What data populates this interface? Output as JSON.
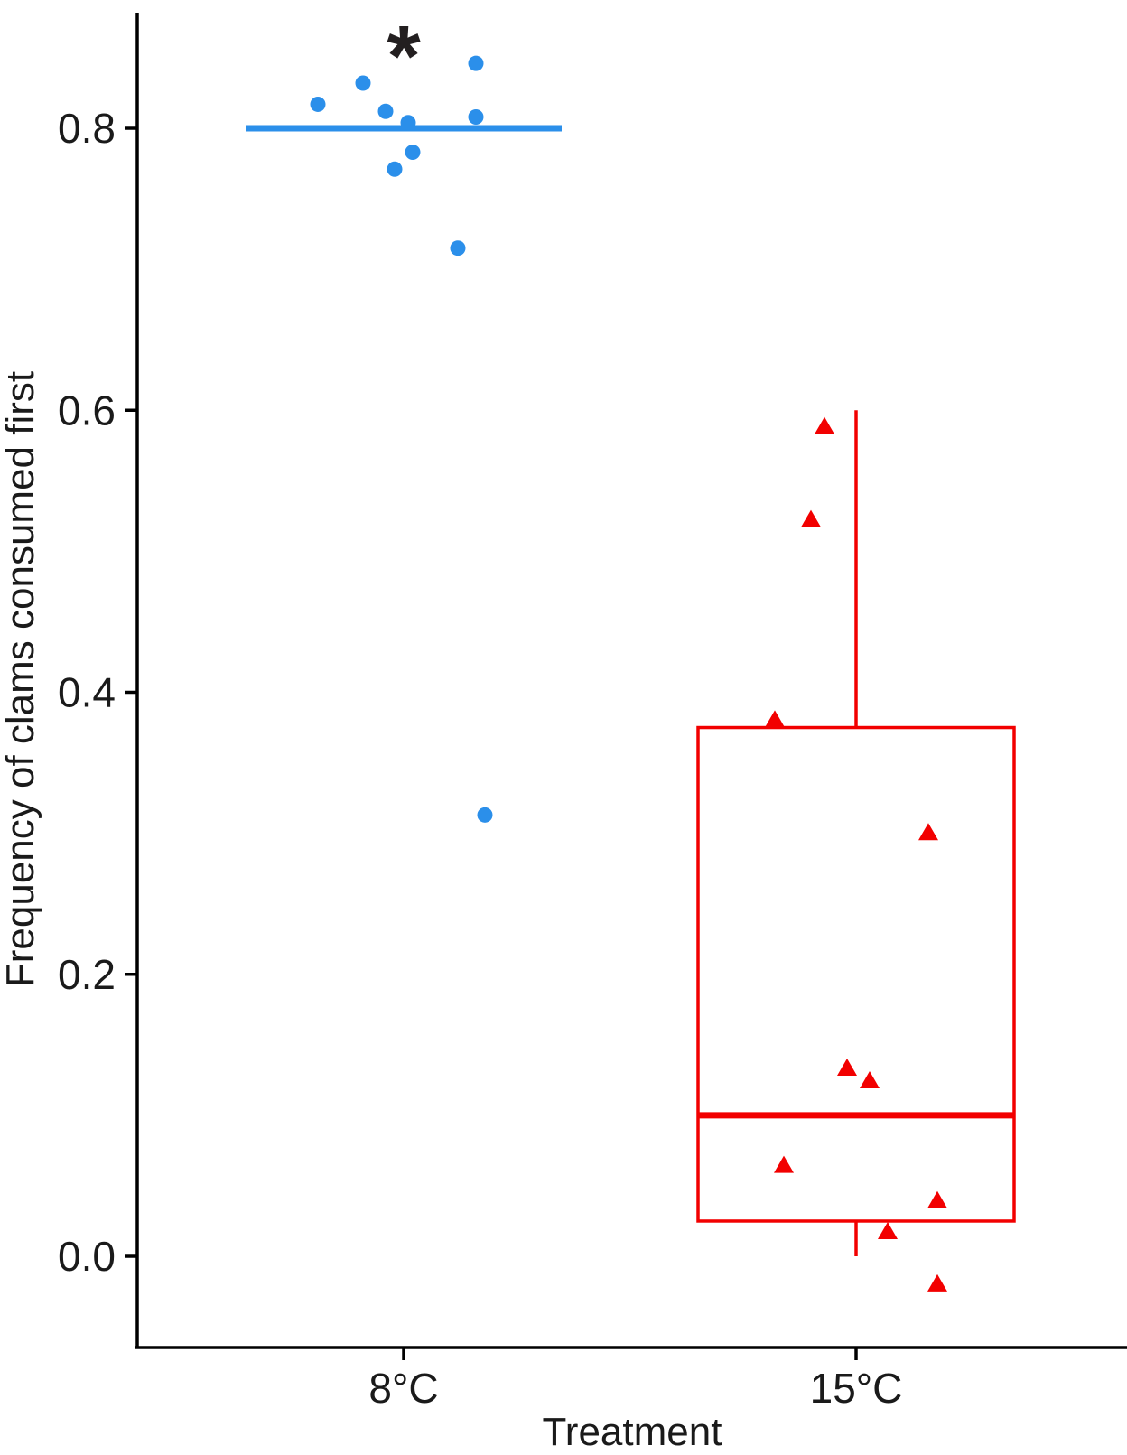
{
  "chart_data": {
    "type": "scatter",
    "xlabel": "Treatment",
    "ylabel": "Frequency of clams consumed first",
    "categories": [
      "8°C",
      "15°C"
    ],
    "ylim": [
      -0.06,
      0.88
    ],
    "yticks": [
      0.0,
      0.2,
      0.4,
      0.6,
      0.8
    ],
    "ytick_labels": [
      "0.0",
      "0.2",
      "0.4",
      "0.6",
      "0.8"
    ],
    "grid": false,
    "legend": "none",
    "annotations": [
      {
        "category": "8°C",
        "text": "*"
      }
    ],
    "colors": {
      "8°C": "#2b8fea",
      "15°C": "#f20000",
      "axis": "#000000"
    },
    "series": [
      {
        "category": "8°C",
        "marker": "circle",
        "points": [
          {
            "x": -0.19,
            "y": 0.817
          },
          {
            "x": -0.09,
            "y": 0.832
          },
          {
            "x": -0.04,
            "y": 0.812
          },
          {
            "x": 0.01,
            "y": 0.804
          },
          {
            "x": 0.02,
            "y": 0.783
          },
          {
            "x": -0.02,
            "y": 0.771
          },
          {
            "x": 0.16,
            "y": 0.846
          },
          {
            "x": 0.16,
            "y": 0.808
          },
          {
            "x": 0.12,
            "y": 0.715
          },
          {
            "x": 0.18,
            "y": 0.313
          }
        ],
        "box": {
          "min": 0.8,
          "q1": 0.8,
          "median": 0.8,
          "q3": 0.8,
          "max": 0.8
        }
      },
      {
        "category": "15°C",
        "marker": "triangle",
        "points": [
          {
            "x": -0.07,
            "y": 0.588
          },
          {
            "x": -0.1,
            "y": 0.522
          },
          {
            "x": -0.18,
            "y": 0.38
          },
          {
            "x": 0.16,
            "y": 0.3
          },
          {
            "x": -0.02,
            "y": 0.133
          },
          {
            "x": 0.03,
            "y": 0.124
          },
          {
            "x": -0.16,
            "y": 0.064
          },
          {
            "x": 0.18,
            "y": 0.039
          },
          {
            "x": 0.07,
            "y": 0.017
          },
          {
            "x": 0.18,
            "y": -0.02
          }
        ],
        "box": {
          "min": 0.0,
          "q1": 0.025,
          "median": 0.1,
          "q3": 0.375,
          "max": 0.6
        }
      }
    ]
  }
}
